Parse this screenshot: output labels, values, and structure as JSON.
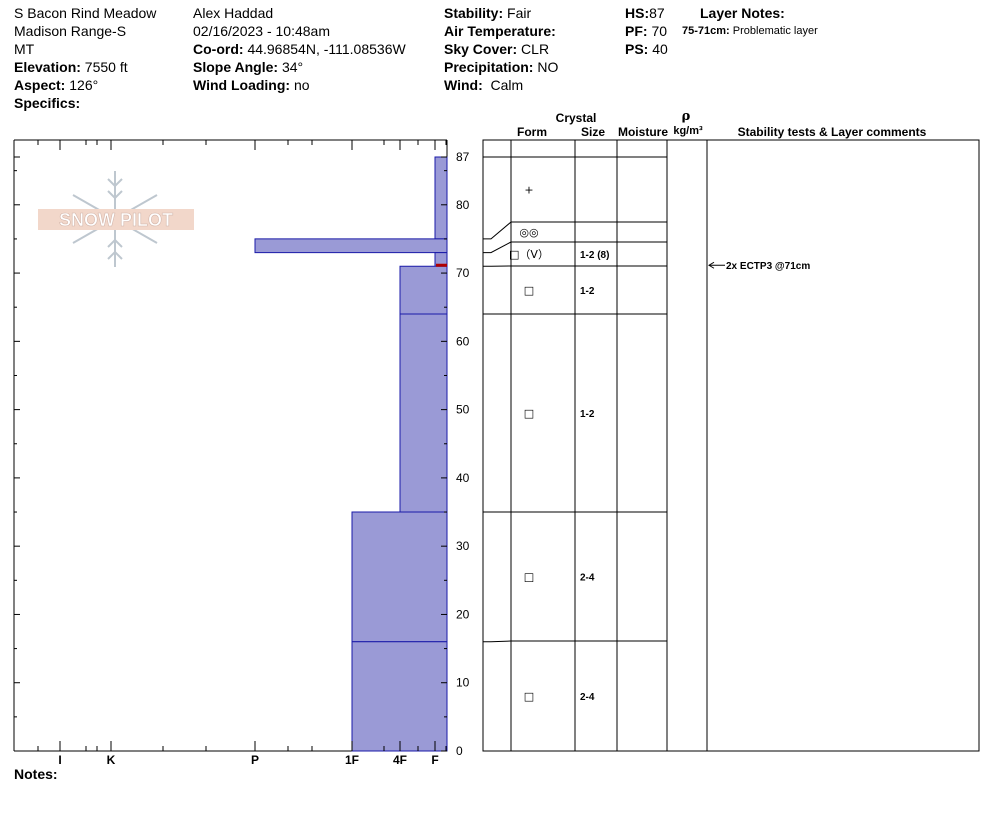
{
  "header": {
    "location": "S Bacon Rind Meadow",
    "range": "Madison Range-S",
    "state": "MT",
    "elevation_label": "Elevation:",
    "elevation": "7550 ft",
    "aspect_label": "Aspect:",
    "aspect": "126°",
    "specifics_label": "Specifics:",
    "observer": "Alex Haddad",
    "datetime": "02/16/2023 - 10:48am",
    "coord_label": "Co-ord:",
    "coord": "44.96854N, -111.08536W",
    "slope_label": "Slope Angle:",
    "slope": "34°",
    "wind_loading_label": "Wind Loading:",
    "wind_loading": "no",
    "stability_label": "Stability:",
    "stability": "Fair",
    "air_temp_label": "Air Temperature:",
    "sky_label": "Sky Cover:",
    "sky": "CLR",
    "precip_label": "Precipitation:",
    "precip": "NO",
    "wind_label": "Wind:",
    "wind": "Calm",
    "hs_label": "HS:",
    "hs": "87",
    "pf_label": "PF:",
    "pf": "70",
    "ps_label": "PS:",
    "ps": "40",
    "layer_notes_label": "Layer Notes:",
    "layer_note_range": "75-71cm:",
    "layer_note_text": "Problematic layer",
    "notes_label": "Notes:"
  },
  "logo_text": "SNOW PILOT",
  "colors": {
    "layer_fill": "#9a9ad6",
    "layer_edge": "#1a1aa8",
    "marker": "#b00000"
  },
  "chart_data": {
    "type": "bar",
    "title": "",
    "ylim": [
      0,
      87
    ],
    "yticks": [
      0,
      10,
      20,
      30,
      40,
      50,
      60,
      70,
      80,
      87
    ],
    "hardness_ticks": [
      "I",
      "K",
      "P",
      "1F",
      "4F",
      "F"
    ],
    "layers": [
      {
        "top": 87,
        "bottom": 75,
        "hardness_top": "F",
        "hardness_bottom": "F",
        "form": "+",
        "size": ""
      },
      {
        "top": 75,
        "bottom": 73,
        "hardness_top": "P",
        "hardness_bottom": "P",
        "form": "◎◎",
        "size": ""
      },
      {
        "top": 73,
        "bottom": 71,
        "hardness_top": "F",
        "hardness_bottom": "F",
        "form": "□（V）",
        "size": "1-2 (8)"
      },
      {
        "top": 71,
        "bottom": 64,
        "hardness_top": "4F",
        "hardness_bottom": "4F",
        "form": "□",
        "size": "1-2"
      },
      {
        "top": 64,
        "bottom": 35,
        "hardness_top": "4F",
        "hardness_bottom": "4F",
        "form": "□",
        "size": "1-2"
      },
      {
        "top": 35,
        "bottom": 16,
        "hardness_top": "1F",
        "hardness_bottom": "1F",
        "form": "□",
        "size": "2-4"
      },
      {
        "top": 16,
        "bottom": 0,
        "hardness_top": "1F",
        "hardness_bottom": "1F",
        "form": "□",
        "size": "2-4"
      }
    ],
    "columns": {
      "crystal": "Crystal",
      "form": "Form",
      "size": "Size",
      "moisture": "Moisture",
      "rho": "ρ",
      "density_unit": "kg/m³",
      "stability": "Stability tests & Layer comments"
    },
    "stability_tests": [
      {
        "depth": 71,
        "text": "2x ECTP3 @71cm"
      }
    ]
  }
}
